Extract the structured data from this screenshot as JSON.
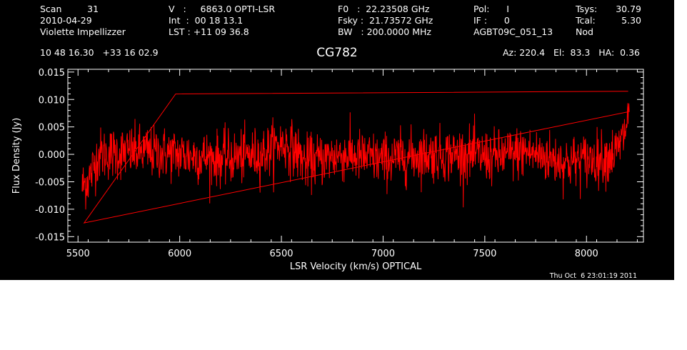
{
  "header": {
    "col1": [
      "Scan         31",
      "2010-04-29",
      "Violette Impellizzer"
    ],
    "col2": [
      "V   :     6863.0 OPTI-LSR",
      "Int  :  00 18 13.1",
      "LST : +11 09 36.8"
    ],
    "col3": [
      "F0   :  22.23508 GHz",
      "Fsky :  21.73572 GHz",
      "BW   : 200.0000 MHz"
    ],
    "col4": [
      "Pol:      I",
      "IF :      0",
      "AGBT09C_051_13"
    ],
    "col5": [
      "Tsys:",
      "Tcal:",
      "Nod"
    ],
    "col6": [
      "30.79",
      "5.30",
      ""
    ],
    "coords": "10 48 16.30   +33 16 02.9",
    "azel": "Az: 220.4   El:  83.3   HA:  0.36"
  },
  "chart_data": {
    "type": "line",
    "title": "CG782",
    "xlabel": "LSR Velocity (km/s) OPTICAL",
    "ylabel": "Flux Density (Jy)",
    "xlim": [
      5450,
      8280
    ],
    "ylim": [
      -0.016,
      0.0155
    ],
    "xticks": [
      5500,
      6000,
      6500,
      7000,
      7500,
      8000
    ],
    "yticks": [
      -0.015,
      -0.01,
      -0.005,
      0.0,
      0.005,
      0.01,
      0.015
    ],
    "ytick_labels": [
      "-0.015",
      "-0.010",
      "-0.005",
      "0.000",
      "0.005",
      "0.010",
      "0.015"
    ],
    "grid": false,
    "series": [
      {
        "color": "#ff0000",
        "x_range": [
          5520,
          8210
        ],
        "noise_rms_jy": 0.003,
        "envelope": {
          "x": [
            5520,
            5560,
            5600,
            5800,
            6000,
            6200,
            6400,
            6500,
            6560,
            6620,
            6800,
            7000,
            7200,
            7400,
            7550,
            7700,
            7900,
            8100,
            8150,
            8180,
            8200,
            8210
          ],
          "y": [
            -0.006,
            -0.004,
            0.0,
            0.0005,
            0.0,
            -0.0008,
            0.0,
            0.002,
            0.001,
            -0.0015,
            0.0,
            -0.001,
            0.0,
            0.0,
            -0.0005,
            0.0005,
            -0.0015,
            -0.0005,
            0.0005,
            0.003,
            0.006,
            0.008
          ]
        },
        "notable_values": [
          {
            "x": 5530,
            "y": -0.0125
          },
          {
            "x": 5980,
            "y": 0.011
          },
          {
            "x": 8205,
            "y": 0.0115
          }
        ]
      }
    ]
  },
  "footer": {
    "timestamp": "Thu Oct  6 23:01:19 2011"
  }
}
